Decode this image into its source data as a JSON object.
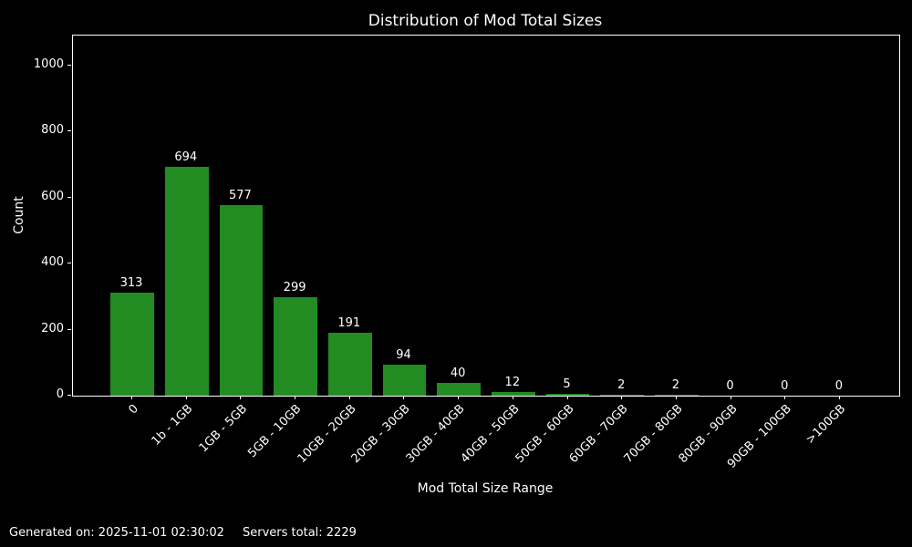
{
  "chart_data": {
    "type": "bar",
    "title": "Distribution of Mod Total Sizes",
    "xlabel": "Mod Total Size Range",
    "ylabel": "Count",
    "categories": [
      "0",
      "1b - 1GB",
      "1GB - 5GB",
      "5GB - 10GB",
      "10GB - 20GB",
      "20GB - 30GB",
      "30GB - 40GB",
      "40GB - 50GB",
      "50GB - 60GB",
      "60GB - 70GB",
      "70GB - 80GB",
      "80GB - 90GB",
      "90GB - 100GB",
      ">100GB"
    ],
    "values": [
      313,
      694,
      577,
      299,
      191,
      94,
      40,
      12,
      5,
      2,
      2,
      0,
      0,
      0
    ],
    "yticks": [
      0,
      200,
      400,
      600,
      800,
      1000
    ],
    "ylim": [
      0,
      1090
    ],
    "xlim": [
      -1.09,
      14.09
    ],
    "bar_width_ratio": 0.8,
    "bar_color": "#228B22",
    "background_color": "#000000",
    "text_color": "#ffffff",
    "grid": false,
    "legend": false,
    "x_tick_rotation_deg": 45,
    "show_value_labels": true
  },
  "footer": {
    "generated": "Generated on: 2025-11-01 02:30:02",
    "servers_total": "Servers total: 2229"
  }
}
